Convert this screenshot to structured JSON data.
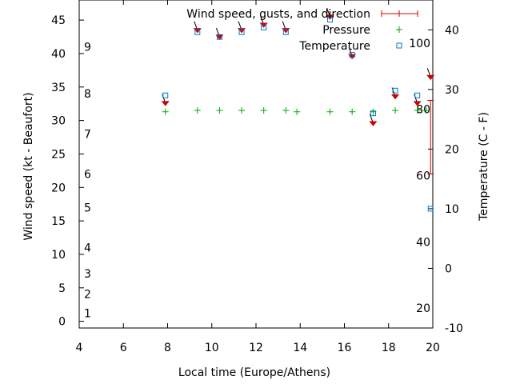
{
  "chart_data": {
    "type": "scatter",
    "xlabel": "Local time (Europe/Athens)",
    "ylabel": "Wind speed (kt - Beaufort)",
    "y2label": "Temperature (C - F)",
    "xlim": [
      4,
      20
    ],
    "ylim": [
      -1,
      48
    ],
    "y2lim": [
      -10,
      45
    ],
    "grid": false,
    "legend_position": "top-right",
    "x_ticks": [
      4,
      6,
      8,
      10,
      12,
      14,
      16,
      18,
      20
    ],
    "y_ticks": [
      0,
      5,
      10,
      15,
      20,
      25,
      30,
      35,
      40,
      45
    ],
    "y2_ticks": [
      -10,
      0,
      10,
      20,
      30,
      40
    ],
    "beaufort_labels": [
      {
        "label": "1",
        "y": 1.2
      },
      {
        "label": "2",
        "y": 4.1
      },
      {
        "label": "3",
        "y": 7.1
      },
      {
        "label": "4",
        "y": 11.0
      },
      {
        "label": "5",
        "y": 17.0
      },
      {
        "label": "6",
        "y": 22.0
      },
      {
        "label": "7",
        "y": 28.0
      },
      {
        "label": "8",
        "y": 34.0
      },
      {
        "label": "9",
        "y": 41.0
      }
    ],
    "fahrenheit_labels": [
      {
        "label": "20",
        "f": 20
      },
      {
        "label": "40",
        "f": 40
      },
      {
        "label": "60",
        "f": 60
      },
      {
        "label": "80",
        "f": 80
      },
      {
        "label": "100",
        "f": 100
      }
    ],
    "series": [
      {
        "name": "Wind speed, gusts, and direction",
        "color": "#cc0000",
        "points": [
          {
            "x": 7.9,
            "y": 32.6
          },
          {
            "x": 9.35,
            "y": 43.5
          },
          {
            "x": 10.35,
            "y": 42.5
          },
          {
            "x": 11.35,
            "y": 43.5
          },
          {
            "x": 12.35,
            "y": 44.3
          },
          {
            "x": 13.35,
            "y": 43.5
          },
          {
            "x": 15.35,
            "y": 45.5
          },
          {
            "x": 16.35,
            "y": 39.6
          },
          {
            "x": 17.3,
            "y": 29.6
          },
          {
            "x": 18.3,
            "y": 33.6
          },
          {
            "x": 19.3,
            "y": 32.6
          },
          {
            "x": 19.9,
            "y": 36.5
          }
        ],
        "gust": {
          "x": 19.9,
          "y_low": 22.0,
          "y_high": 33.0
        }
      },
      {
        "name": "Pressure",
        "color": "#00aa00",
        "points": [
          {
            "x": 7.9,
            "y": 31.3
          },
          {
            "x": 9.35,
            "y": 31.5
          },
          {
            "x": 10.35,
            "y": 31.5
          },
          {
            "x": 11.35,
            "y": 31.5
          },
          {
            "x": 12.35,
            "y": 31.5
          },
          {
            "x": 13.35,
            "y": 31.5
          },
          {
            "x": 13.85,
            "y": 31.3
          },
          {
            "x": 15.35,
            "y": 31.3
          },
          {
            "x": 16.35,
            "y": 31.3
          },
          {
            "x": 17.3,
            "y": 31.3
          },
          {
            "x": 18.3,
            "y": 31.5
          },
          {
            "x": 19.3,
            "y": 31.5
          },
          {
            "x": 19.7,
            "y": 31.5
          }
        ]
      },
      {
        "name": "Temperature",
        "color": "#0077cc",
        "points": [
          {
            "x": 7.9,
            "y": 29.0
          },
          {
            "x": 9.35,
            "y": 39.6
          },
          {
            "x": 10.35,
            "y": 38.8
          },
          {
            "x": 11.35,
            "y": 39.6
          },
          {
            "x": 12.35,
            "y": 40.4
          },
          {
            "x": 13.35,
            "y": 39.6
          },
          {
            "x": 15.35,
            "y": 41.7
          },
          {
            "x": 16.35,
            "y": 35.8
          },
          {
            "x": 17.3,
            "y": 26.0
          },
          {
            "x": 18.3,
            "y": 29.8
          },
          {
            "x": 19.3,
            "y": 29.0
          },
          {
            "x": 19.9,
            "y": 10.0
          }
        ]
      }
    ]
  }
}
